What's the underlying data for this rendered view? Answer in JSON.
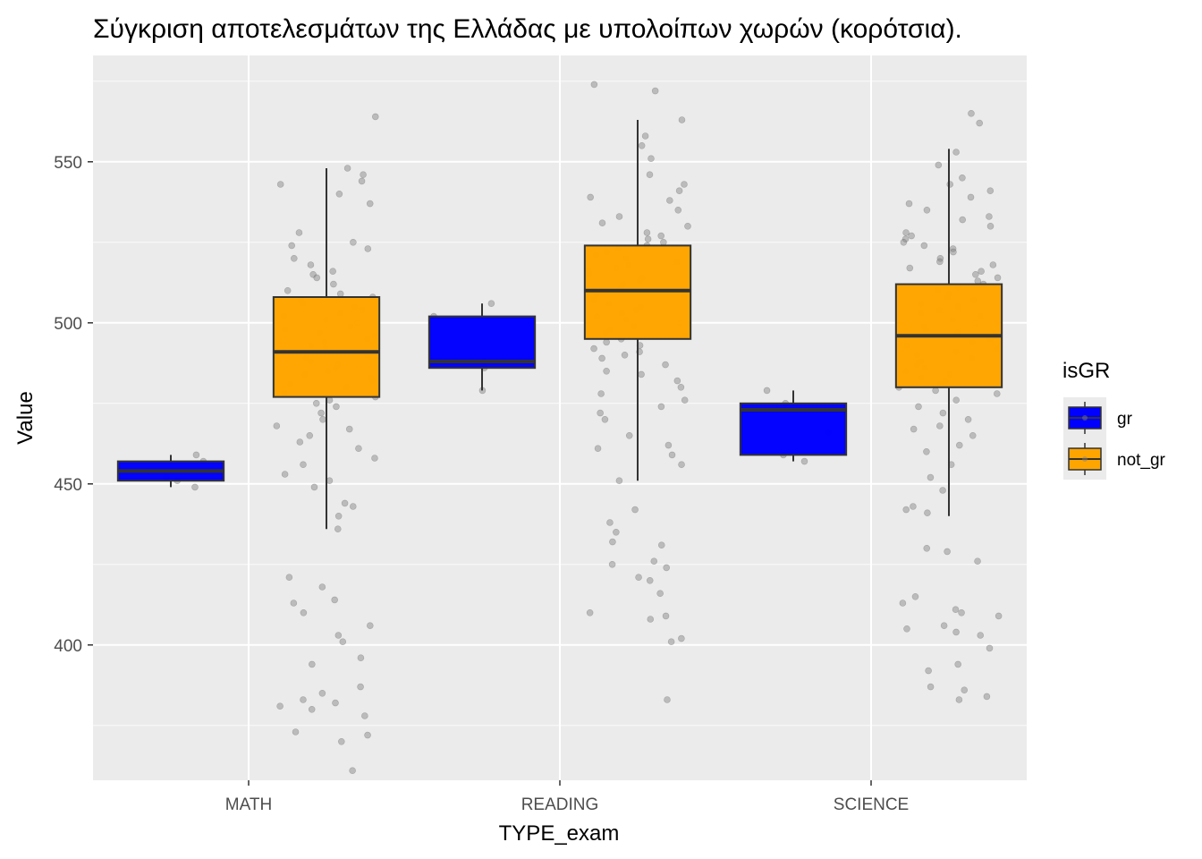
{
  "chart_data": {
    "type": "box",
    "title": "Σύγκριση αποτελεσμάτων της Ελλάδας με υπολοίπων χωρών (κορότσια).",
    "xlabel": "TYPE_exam",
    "ylabel": "Value",
    "categories": [
      "MATH",
      "READING",
      "SCIENCE"
    ],
    "ylim": [
      358,
      583
    ],
    "yticks": [
      400,
      450,
      500,
      550
    ],
    "grid": true,
    "legend": {
      "title": "isGR",
      "position": "right",
      "entries": [
        "gr",
        "not_gr"
      ]
    },
    "colors": {
      "gr": "#0000ff",
      "not_gr": "#ffa500",
      "panel": "#ebebeb",
      "grid": "#ffffff",
      "points": "#808080"
    },
    "series": [
      {
        "name": "gr",
        "boxes": [
          {
            "category": "MATH",
            "min": 449,
            "q1": 451,
            "median": 454,
            "q3": 457,
            "max": 459
          },
          {
            "category": "READING",
            "min": 479,
            "q1": 486,
            "median": 488,
            "q3": 502,
            "max": 506
          },
          {
            "category": "SCIENCE",
            "min": 457,
            "q1": 459,
            "median": 473,
            "q3": 475,
            "max": 479
          }
        ],
        "points": [
          {
            "category": "MATH",
            "values": [
              449,
              451,
              452,
              454,
              457,
              459
            ]
          },
          {
            "category": "READING",
            "values": [
              479,
              486,
              488,
              502,
              506
            ]
          },
          {
            "category": "SCIENCE",
            "values": [
              457,
              459,
              466,
              473,
              475,
              479
            ]
          }
        ]
      },
      {
        "name": "not_gr",
        "boxes": [
          {
            "category": "MATH",
            "min": 436,
            "q1": 477,
            "median": 491,
            "q3": 508,
            "max": 548
          },
          {
            "category": "READING",
            "min": 451,
            "q1": 495,
            "median": 510,
            "q3": 524,
            "max": 563
          },
          {
            "category": "SCIENCE",
            "min": 440,
            "q1": 480,
            "median": 496,
            "q3": 512,
            "max": 554
          }
        ],
        "points": [
          {
            "category": "MATH",
            "values": [
              564,
              548,
              546,
              544,
              543,
              540,
              537,
              528,
              525,
              524,
              523,
              520,
              518,
              516,
              515,
              514,
              512,
              510,
              509,
              508,
              507,
              506,
              505,
              504,
              503,
              502,
              501,
              500,
              499,
              498,
              497,
              496,
              495,
              494,
              493,
              492,
              491,
              490,
              489,
              488,
              487,
              486,
              485,
              484,
              483,
              482,
              481,
              480,
              478,
              477,
              476,
              475,
              474,
              472,
              470,
              468,
              467,
              465,
              463,
              461,
              458,
              456,
              453,
              451,
              449,
              444,
              443,
              440,
              436,
              421,
              418,
              414,
              413,
              410,
              406,
              403,
              401,
              396,
              394,
              387,
              385,
              383,
              382,
              381,
              380,
              378,
              373,
              372,
              370,
              361
            ]
          },
          {
            "category": "READING",
            "values": [
              574,
              572,
              563,
              558,
              555,
              551,
              546,
              543,
              541,
              539,
              538,
              535,
              533,
              531,
              530,
              528,
              527,
              526,
              525,
              524,
              523,
              522,
              521,
              520,
              519,
              518,
              517,
              516,
              515,
              514,
              513,
              512,
              511,
              510,
              509,
              508,
              507,
              506,
              505,
              504,
              503,
              502,
              501,
              500,
              499,
              498,
              497,
              496,
              495,
              494,
              493,
              492,
              491,
              490,
              489,
              487,
              485,
              484,
              482,
              480,
              478,
              476,
              474,
              472,
              470,
              465,
              462,
              461,
              459,
              456,
              451,
              442,
              438,
              435,
              432,
              431,
              426,
              425,
              424,
              421,
              420,
              416,
              410,
              409,
              408,
              402,
              401,
              383
            ]
          },
          {
            "category": "SCIENCE",
            "values": [
              565,
              562,
              553,
              549,
              545,
              543,
              541,
              539,
              537,
              535,
              533,
              532,
              530,
              528,
              527,
              526,
              525,
              524,
              523,
              522,
              520,
              519,
              518,
              517,
              516,
              515,
              514,
              513,
              512,
              511,
              510,
              509,
              508,
              507,
              506,
              505,
              504,
              503,
              502,
              501,
              500,
              499,
              498,
              497,
              496,
              495,
              494,
              493,
              492,
              491,
              490,
              489,
              488,
              487,
              486,
              485,
              484,
              483,
              482,
              481,
              480,
              479,
              478,
              476,
              474,
              472,
              470,
              468,
              467,
              465,
              462,
              460,
              456,
              452,
              448,
              443,
              442,
              441,
              430,
              429,
              426,
              415,
              413,
              411,
              410,
              409,
              406,
              405,
              404,
              403,
              399,
              394,
              392,
              387,
              386,
              384,
              383
            ]
          }
        ]
      }
    ]
  }
}
